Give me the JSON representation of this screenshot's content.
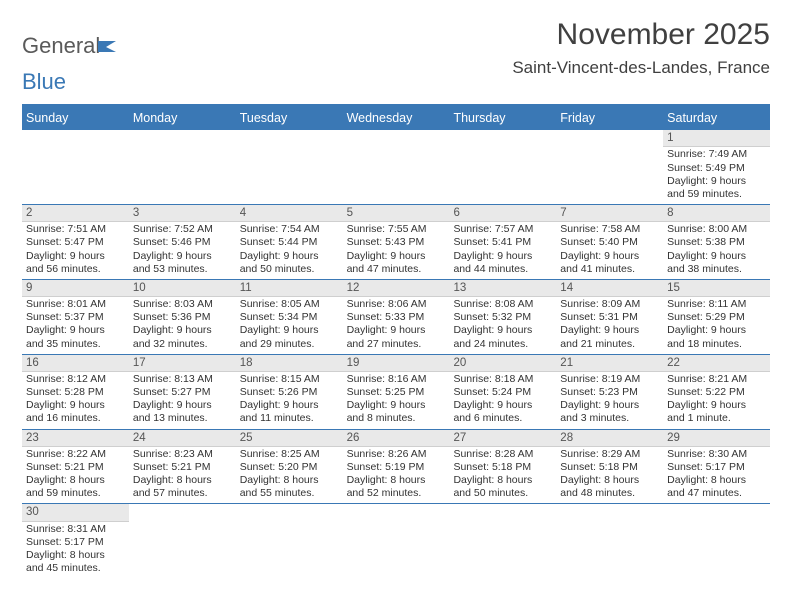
{
  "logo": {
    "word1": "General",
    "word2": "Blue"
  },
  "title": "November 2025",
  "location": "Saint-Vincent-des-Landes, France",
  "colors": {
    "accent": "#3a78b5",
    "header_bg": "#e9e9e9",
    "text": "#404040"
  },
  "weekdays": [
    "Sunday",
    "Monday",
    "Tuesday",
    "Wednesday",
    "Thursday",
    "Friday",
    "Saturday"
  ],
  "weeks": [
    [
      null,
      null,
      null,
      null,
      null,
      null,
      {
        "n": "1",
        "sr": "Sunrise: 7:49 AM",
        "ss": "Sunset: 5:49 PM",
        "dl": "Daylight: 9 hours and 59 minutes."
      }
    ],
    [
      {
        "n": "2",
        "sr": "Sunrise: 7:51 AM",
        "ss": "Sunset: 5:47 PM",
        "dl": "Daylight: 9 hours and 56 minutes."
      },
      {
        "n": "3",
        "sr": "Sunrise: 7:52 AM",
        "ss": "Sunset: 5:46 PM",
        "dl": "Daylight: 9 hours and 53 minutes."
      },
      {
        "n": "4",
        "sr": "Sunrise: 7:54 AM",
        "ss": "Sunset: 5:44 PM",
        "dl": "Daylight: 9 hours and 50 minutes."
      },
      {
        "n": "5",
        "sr": "Sunrise: 7:55 AM",
        "ss": "Sunset: 5:43 PM",
        "dl": "Daylight: 9 hours and 47 minutes."
      },
      {
        "n": "6",
        "sr": "Sunrise: 7:57 AM",
        "ss": "Sunset: 5:41 PM",
        "dl": "Daylight: 9 hours and 44 minutes."
      },
      {
        "n": "7",
        "sr": "Sunrise: 7:58 AM",
        "ss": "Sunset: 5:40 PM",
        "dl": "Daylight: 9 hours and 41 minutes."
      },
      {
        "n": "8",
        "sr": "Sunrise: 8:00 AM",
        "ss": "Sunset: 5:38 PM",
        "dl": "Daylight: 9 hours and 38 minutes."
      }
    ],
    [
      {
        "n": "9",
        "sr": "Sunrise: 8:01 AM",
        "ss": "Sunset: 5:37 PM",
        "dl": "Daylight: 9 hours and 35 minutes."
      },
      {
        "n": "10",
        "sr": "Sunrise: 8:03 AM",
        "ss": "Sunset: 5:36 PM",
        "dl": "Daylight: 9 hours and 32 minutes."
      },
      {
        "n": "11",
        "sr": "Sunrise: 8:05 AM",
        "ss": "Sunset: 5:34 PM",
        "dl": "Daylight: 9 hours and 29 minutes."
      },
      {
        "n": "12",
        "sr": "Sunrise: 8:06 AM",
        "ss": "Sunset: 5:33 PM",
        "dl": "Daylight: 9 hours and 27 minutes."
      },
      {
        "n": "13",
        "sr": "Sunrise: 8:08 AM",
        "ss": "Sunset: 5:32 PM",
        "dl": "Daylight: 9 hours and 24 minutes."
      },
      {
        "n": "14",
        "sr": "Sunrise: 8:09 AM",
        "ss": "Sunset: 5:31 PM",
        "dl": "Daylight: 9 hours and 21 minutes."
      },
      {
        "n": "15",
        "sr": "Sunrise: 8:11 AM",
        "ss": "Sunset: 5:29 PM",
        "dl": "Daylight: 9 hours and 18 minutes."
      }
    ],
    [
      {
        "n": "16",
        "sr": "Sunrise: 8:12 AM",
        "ss": "Sunset: 5:28 PM",
        "dl": "Daylight: 9 hours and 16 minutes."
      },
      {
        "n": "17",
        "sr": "Sunrise: 8:13 AM",
        "ss": "Sunset: 5:27 PM",
        "dl": "Daylight: 9 hours and 13 minutes."
      },
      {
        "n": "18",
        "sr": "Sunrise: 8:15 AM",
        "ss": "Sunset: 5:26 PM",
        "dl": "Daylight: 9 hours and 11 minutes."
      },
      {
        "n": "19",
        "sr": "Sunrise: 8:16 AM",
        "ss": "Sunset: 5:25 PM",
        "dl": "Daylight: 9 hours and 8 minutes."
      },
      {
        "n": "20",
        "sr": "Sunrise: 8:18 AM",
        "ss": "Sunset: 5:24 PM",
        "dl": "Daylight: 9 hours and 6 minutes."
      },
      {
        "n": "21",
        "sr": "Sunrise: 8:19 AM",
        "ss": "Sunset: 5:23 PM",
        "dl": "Daylight: 9 hours and 3 minutes."
      },
      {
        "n": "22",
        "sr": "Sunrise: 8:21 AM",
        "ss": "Sunset: 5:22 PM",
        "dl": "Daylight: 9 hours and 1 minute."
      }
    ],
    [
      {
        "n": "23",
        "sr": "Sunrise: 8:22 AM",
        "ss": "Sunset: 5:21 PM",
        "dl": "Daylight: 8 hours and 59 minutes."
      },
      {
        "n": "24",
        "sr": "Sunrise: 8:23 AM",
        "ss": "Sunset: 5:21 PM",
        "dl": "Daylight: 8 hours and 57 minutes."
      },
      {
        "n": "25",
        "sr": "Sunrise: 8:25 AM",
        "ss": "Sunset: 5:20 PM",
        "dl": "Daylight: 8 hours and 55 minutes."
      },
      {
        "n": "26",
        "sr": "Sunrise: 8:26 AM",
        "ss": "Sunset: 5:19 PM",
        "dl": "Daylight: 8 hours and 52 minutes."
      },
      {
        "n": "27",
        "sr": "Sunrise: 8:28 AM",
        "ss": "Sunset: 5:18 PM",
        "dl": "Daylight: 8 hours and 50 minutes."
      },
      {
        "n": "28",
        "sr": "Sunrise: 8:29 AM",
        "ss": "Sunset: 5:18 PM",
        "dl": "Daylight: 8 hours and 48 minutes."
      },
      {
        "n": "29",
        "sr": "Sunrise: 8:30 AM",
        "ss": "Sunset: 5:17 PM",
        "dl": "Daylight: 8 hours and 47 minutes."
      }
    ],
    [
      {
        "n": "30",
        "sr": "Sunrise: 8:31 AM",
        "ss": "Sunset: 5:17 PM",
        "dl": "Daylight: 8 hours and 45 minutes."
      },
      null,
      null,
      null,
      null,
      null,
      null
    ]
  ]
}
